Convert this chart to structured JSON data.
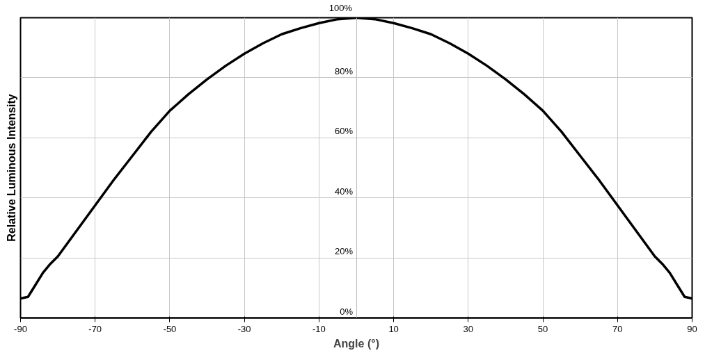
{
  "chart_data": {
    "type": "line",
    "xlabel": "Angle (°)",
    "ylabel": "Relative Luminous Intensity",
    "x": [
      -90,
      -88,
      -86,
      -84,
      -82,
      -80,
      -75,
      -70,
      -65,
      -60,
      -55,
      -50,
      -45,
      -40,
      -35,
      -30,
      -25,
      -20,
      -15,
      -10,
      -5,
      0,
      5,
      10,
      15,
      20,
      25,
      30,
      35,
      40,
      45,
      50,
      55,
      60,
      65,
      70,
      75,
      80,
      82,
      84,
      86,
      88,
      90
    ],
    "series": [
      {
        "color": "#000000",
        "values": [
          6.5,
          7,
          11,
          15,
          18,
          20.5,
          29,
          37.5,
          46,
          54,
          62,
          69,
          74.5,
          79.5,
          84,
          88,
          91.5,
          94.5,
          96.5,
          98.2,
          99.5,
          100,
          99.5,
          98.2,
          96.5,
          94.5,
          91.5,
          88,
          84,
          79.5,
          74.5,
          69,
          62,
          54,
          46,
          37.5,
          29,
          20.5,
          18,
          15,
          11,
          7,
          6.5
        ]
      }
    ],
    "xlim": [
      -90,
      90
    ],
    "xticks": [
      -90,
      -70,
      -50,
      -30,
      -10,
      10,
      30,
      50,
      70,
      90
    ],
    "ylim": [
      0,
      100
    ],
    "yticks": [
      {
        "value": 0,
        "label": "0%"
      },
      {
        "value": 20,
        "label": "20%"
      },
      {
        "value": 40,
        "label": "40%"
      },
      {
        "value": 60,
        "label": "60%"
      },
      {
        "value": 80,
        "label": "80%"
      },
      {
        "value": 100,
        "label": "100%"
      }
    ],
    "grid": true,
    "marker": "none",
    "line_style": "solid"
  }
}
